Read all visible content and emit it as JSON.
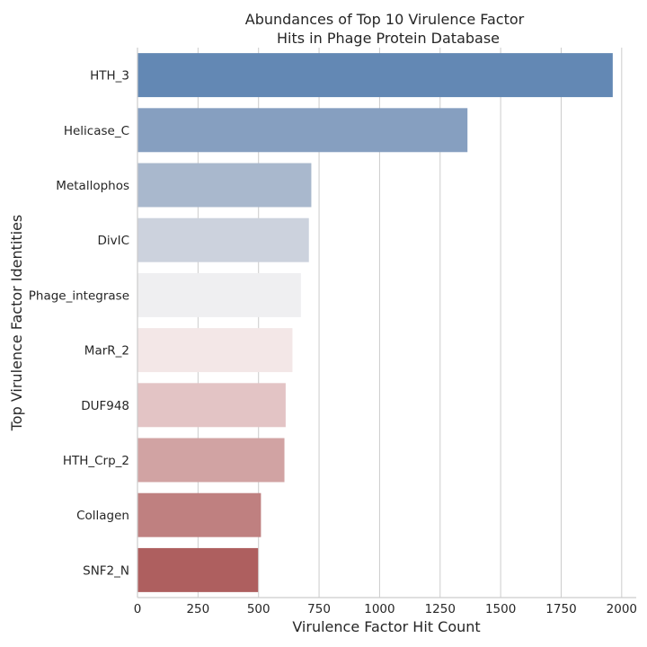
{
  "chart_data": {
    "type": "bar",
    "orientation": "horizontal",
    "title_lines": [
      "Abundances of Top 10 Virulence Factor",
      "Hits in Phage Protein Database"
    ],
    "xlabel": "Virulence Factor Hit Count",
    "ylabel": "Top Virulence Factor Identities",
    "categories": [
      "HTH_3",
      "Helicase_C",
      "Metallophos",
      "DivIC",
      "Phage_integrase",
      "MarR_2",
      "DUF948",
      "HTH_Crp_2",
      "Collagen",
      "SNF2_N"
    ],
    "values": [
      1963,
      1363,
      718,
      708,
      675,
      640,
      612,
      607,
      510,
      498
    ],
    "colors": [
      "#6388b4",
      "#869fc0",
      "#a9b8cd",
      "#ccd2dd",
      "#efeff1",
      "#f3e7e7",
      "#e3c4c5",
      "#d1a3a3",
      "#bf8080",
      "#ae5f5f"
    ],
    "xlim": [
      0,
      2060
    ],
    "xticks": [
      0,
      250,
      500,
      750,
      1000,
      1250,
      1500,
      1750,
      2000
    ],
    "grid": "vertical"
  }
}
